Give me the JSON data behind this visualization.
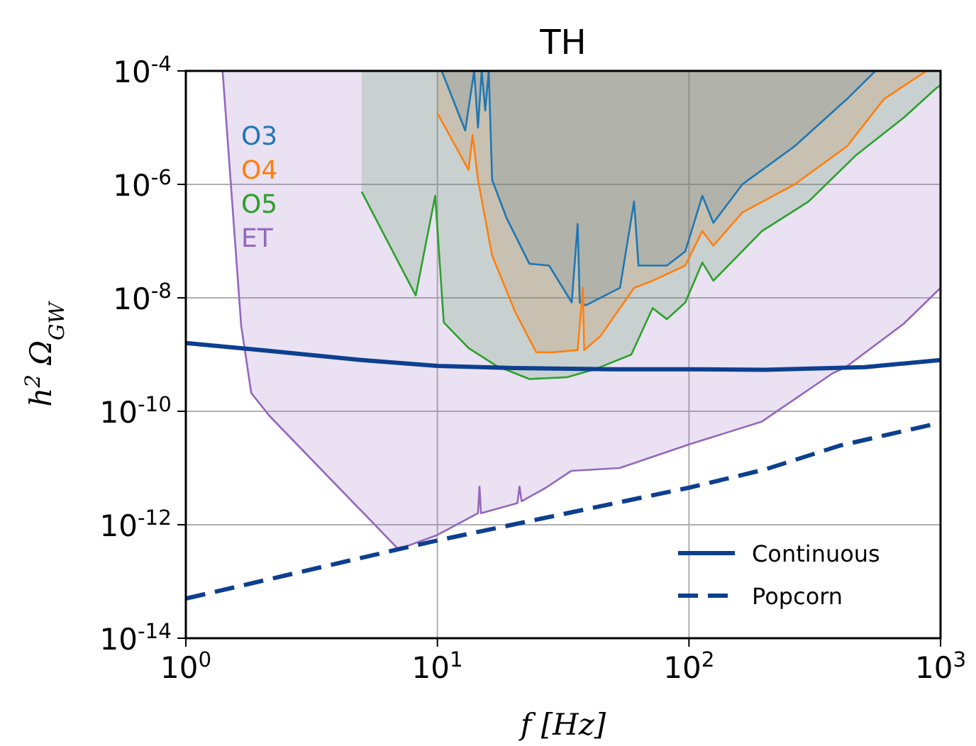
{
  "chart_data": {
    "type": "line",
    "title": "TH",
    "xlabel": "f [Hz]",
    "ylabel": "h$^{2}$ Ω$_{GW}$",
    "log": "xy",
    "grid": true,
    "legend": "bottom right",
    "xlim": [
      1,
      1000
    ],
    "ylim": [
      1e-14,
      0.0001
    ],
    "xticks": [
      {
        "value": 1,
        "label": "10$^{0}$"
      },
      {
        "value": 10,
        "label": "10$^{1}$"
      },
      {
        "value": 100,
        "label": "10$^{2}$"
      },
      {
        "value": 1000,
        "label": "10$^{3}$"
      }
    ],
    "yticks": [
      {
        "value": 1e-14,
        "label": "10$^{-14}$"
      },
      {
        "value": 1e-12,
        "label": "10$^{-12}$"
      },
      {
        "value": 1e-10,
        "label": "10$^{-10}$"
      },
      {
        "value": 1e-08,
        "label": "10$^{-8}$"
      },
      {
        "value": 1e-06,
        "label": "10$^{-6}$"
      },
      {
        "value": 0.0001,
        "label": "10$^{-4}$"
      }
    ],
    "series": [
      {
        "name": "O3",
        "color": "#1f77b4",
        "x": [
          10.4,
          12.9,
          14,
          14.5,
          15,
          15.5,
          16,
          16.5,
          18.8,
          23.2,
          27.8,
          34.2,
          36.1,
          36.8,
          39,
          53.2,
          60.5,
          63,
          81.7,
          96.7,
          113,
          125,
          163,
          263,
          425,
          551
        ],
        "values": [
          0.0001,
          8.9e-06,
          0.0001,
          1e-05,
          0.0001,
          2e-05,
          0.0001,
          1.2e-06,
          2.6e-07,
          4e-08,
          3.7e-08,
          8.3e-09,
          2e-07,
          8.3e-09,
          7.4e-09,
          1.5e-08,
          5e-07,
          3.7e-08,
          3.7e-08,
          6.6e-08,
          6.3e-07,
          2.1e-07,
          1e-06,
          4.7e-06,
          3.2e-05,
          0.0001
        ],
        "lower": [
          0.0001,
          8.9e-06,
          0.0001,
          1e-05,
          0.0001,
          2e-05,
          0.0001,
          1.2e-06,
          2.6e-07,
          4e-08,
          3.7e-08,
          8.3e-09,
          2e-07,
          8.3e-09,
          7.4e-09,
          1.5e-08,
          5e-07,
          3.7e-08,
          3.7e-08,
          6.6e-08,
          6.3e-07,
          2.1e-07,
          1e-06,
          4.7e-06,
          3.2e-05,
          0.0001
        ],
        "upper": [
          0.0001,
          0.0001,
          0.0001,
          0.0001,
          0.0001,
          0.0001,
          0.0001,
          0.0001,
          0.0001,
          0.0001,
          0.0001,
          0.0001,
          0.0001,
          0.0001,
          0.0001,
          0.0001,
          0.0001,
          0.0001,
          0.0001,
          0.0001,
          0.0001,
          0.0001,
          0.0001,
          0.0001,
          0.0001,
          0.0001
        ]
      },
      {
        "name": "O4",
        "color": "#ff7f0e",
        "x": [
          10,
          13.3,
          13.8,
          14.5,
          16.5,
          20.4,
          24.7,
          28.9,
          36.1,
          37.9,
          38.3,
          44.4,
          60.5,
          71.7,
          96.7,
          113,
          125,
          163,
          263,
          425,
          596,
          880
        ],
        "values": [
          1.8e-05,
          1.8e-06,
          7.4e-06,
          1.2e-06,
          5.6e-08,
          5.6e-09,
          1.1e-09,
          1.1e-09,
          1.2e-09,
          1.5e-08,
          1.2e-09,
          2.1e-09,
          1.5e-08,
          2e-08,
          3.7e-08,
          1.5e-07,
          8.3e-08,
          3.2e-07,
          1e-06,
          4.7e-06,
          3.2e-05,
          0.0001
        ],
        "lower": [
          1.8e-05,
          1.8e-06,
          7.4e-06,
          1.2e-06,
          5.6e-08,
          5.6e-09,
          1.1e-09,
          1.1e-09,
          1.2e-09,
          1.5e-08,
          1.2e-09,
          2.1e-09,
          1.5e-08,
          2e-08,
          3.7e-08,
          1.5e-07,
          8.3e-08,
          3.2e-07,
          1e-06,
          4.7e-06,
          3.2e-05,
          0.0001
        ],
        "upper": [
          0.0001,
          0.0001,
          0.0001,
          0.0001,
          0.0001,
          0.0001,
          0.0001,
          0.0001,
          0.0001,
          0.0001,
          0.0001,
          0.0001,
          0.0001,
          0.0001,
          0.0001,
          0.0001,
          0.0001,
          0.0001,
          0.0001,
          0.0001,
          0.0001,
          0.0001
        ]
      },
      {
        "name": "O5",
        "color": "#2ca02c",
        "x": [
          5,
          8.2,
          9.8,
          10.6,
          13.3,
          17.2,
          23.2,
          32.9,
          42.7,
          59,
          71.7,
          81.7,
          96.7,
          113,
          125,
          195,
          299,
          459,
          714,
          964,
          1000
        ],
        "values": [
          7.4e-07,
          1.1e-08,
          6.3e-07,
          3.7e-09,
          1.3e-09,
          6.3e-10,
          3.7e-10,
          4e-10,
          5.6e-10,
          1e-09,
          6.6e-09,
          4.2e-09,
          8.3e-09,
          4.2e-08,
          2e-08,
          1.5e-07,
          5e-07,
          3.2e-06,
          1.5e-05,
          5e-05,
          5.6e-05
        ],
        "lower": [
          7.4e-07,
          1.1e-08,
          6.3e-07,
          3.7e-09,
          1.3e-09,
          6.3e-10,
          3.7e-10,
          4e-10,
          5.6e-10,
          1e-09,
          6.6e-09,
          4.2e-09,
          8.3e-09,
          4.2e-08,
          2e-08,
          1.5e-07,
          5e-07,
          3.2e-06,
          1.5e-05,
          5e-05,
          5.6e-05
        ],
        "upper": [
          0.0001,
          0.0001,
          0.0001,
          0.0001,
          0.0001,
          0.0001,
          0.0001,
          0.0001,
          0.0001,
          0.0001,
          0.0001,
          0.0001,
          0.0001,
          0.0001,
          0.0001,
          0.0001,
          0.0001,
          0.0001,
          0.0001,
          0.0001,
          0.0001
        ]
      },
      {
        "name": "ET",
        "color": "#9467bd",
        "x": [
          1.4,
          1.66,
          1.82,
          2.15,
          7,
          10,
          14.5,
          14.7,
          14.9,
          20.8,
          21.2,
          21.6,
          22.3,
          27,
          34,
          53,
          100,
          195,
          373,
          420,
          714,
          1000
        ],
        "values": [
          0.0001,
          3.2e-09,
          2.1e-10,
          8.3e-11,
          3.7e-13,
          6.6e-13,
          1.6e-12,
          4.7e-12,
          1.6e-12,
          2.4e-12,
          4.7e-12,
          2.6e-12,
          2.8e-12,
          4.5e-12,
          8.9e-12,
          1e-11,
          2.6e-11,
          6.6e-11,
          4.7e-10,
          6e-10,
          3.5e-09,
          1.5e-08
        ],
        "lower": [
          0.0001,
          3.2e-09,
          2.1e-10,
          8.3e-11,
          3.7e-13,
          6.6e-13,
          1.6e-12,
          4.7e-12,
          1.6e-12,
          2.4e-12,
          4.7e-12,
          2.6e-12,
          2.8e-12,
          4.5e-12,
          8.9e-12,
          1e-11,
          2.6e-11,
          6.6e-11,
          4.7e-10,
          6e-10,
          3.5e-09,
          1.5e-08
        ],
        "upper": [
          0.0001,
          0.0001,
          0.0001,
          0.0001,
          0.0001,
          0.0001,
          0.0001,
          0.0001,
          0.0001,
          0.0001,
          0.0001,
          0.0001,
          0.0001,
          0.0001,
          0.0001,
          0.0001,
          0.0001,
          0.0001,
          0.0001,
          0.0001,
          0.0001,
          0.0001
        ]
      },
      {
        "name": "Continuous",
        "color": "#0d3f8f",
        "line_style": "solid",
        "x": [
          1,
          2,
          5,
          10,
          20,
          50,
          100,
          200,
          500,
          1000
        ],
        "values": [
          1.6e-09,
          1.2e-09,
          8e-10,
          6.3e-10,
          5.8e-10,
          5.5e-10,
          5.5e-10,
          5.4e-10,
          6e-10,
          8e-10
        ]
      },
      {
        "name": "Popcorn",
        "color": "#0d3f8f",
        "line_style": "dashed",
        "x": [
          1,
          7,
          10,
          100,
          200,
          400,
          1000
        ],
        "values": [
          5e-14,
          3.7e-13,
          5.3e-13,
          4.5e-12,
          9.4e-12,
          2.5e-11,
          6.3e-11
        ]
      }
    ]
  }
}
